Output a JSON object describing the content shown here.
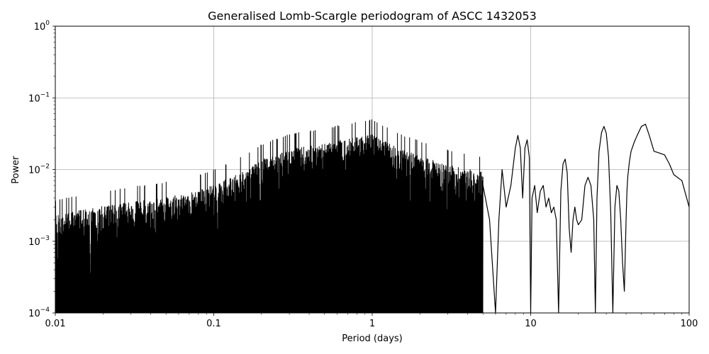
{
  "chart_data": {
    "type": "line",
    "title": "Generalised Lomb-Scargle periodogram of ASCC 1432053",
    "xlabel": "Period (days)",
    "ylabel": "Power",
    "xscale": "log",
    "yscale": "log",
    "xlim": [
      0.01,
      100
    ],
    "ylim": [
      0.0001,
      1
    ],
    "grid": true,
    "line_color": "#000000",
    "grid_color": "#b0b0b0",
    "x_ticks": [
      {
        "value": 0.01,
        "label": "0.01"
      },
      {
        "value": 0.1,
        "label": "0.1"
      },
      {
        "value": 1,
        "label": "1"
      },
      {
        "value": 10,
        "label": "10"
      },
      {
        "value": 100,
        "label": "100"
      }
    ],
    "y_ticks": [
      {
        "value": 0.0001,
        "base": "10",
        "exp": "−4"
      },
      {
        "value": 0.001,
        "base": "10",
        "exp": "−3"
      },
      {
        "value": 0.01,
        "base": "10",
        "exp": "−2"
      },
      {
        "value": 0.1,
        "base": "10",
        "exp": "−1"
      },
      {
        "value": 1,
        "base": "10",
        "exp": "0"
      }
    ],
    "envelope": {
      "x": [
        0.01,
        0.02,
        0.04,
        0.07,
        0.1,
        0.15,
        0.2,
        0.3,
        0.5,
        0.7,
        1.0,
        1.5,
        2.0,
        3.0,
        5.0
      ],
      "peak_power": [
        0.003,
        0.004,
        0.005,
        0.006,
        0.008,
        0.012,
        0.018,
        0.025,
        0.03,
        0.035,
        0.04,
        0.025,
        0.02,
        0.015,
        0.012
      ]
    },
    "series": [
      {
        "x": [
          5.0,
          5.5,
          6.0,
          6.3,
          6.6,
          7.0,
          7.5,
          8.0,
          8.3,
          8.6,
          8.9,
          9.2,
          9.5,
          9.8,
          10.0,
          10.2,
          10.6,
          11.0,
          11.5,
          12.0,
          12.5,
          13.0,
          13.5,
          14.0,
          14.5,
          15.0,
          15.5,
          16.0,
          16.5,
          17.0,
          17.5,
          18.0,
          18.5,
          19.0,
          19.5,
          20.0,
          21.0,
          22.0,
          23.0,
          24.0,
          25.0,
          25.6,
          26.2,
          27.0,
          28.0,
          29.0,
          30.0,
          31.0,
          32.0,
          33.0,
          34.0,
          35.0,
          36.0,
          37.0,
          38.0,
          39.0,
          40.0,
          40.5,
          41.0,
          42.0,
          43.0,
          45.0,
          47.0,
          50.0,
          53.0,
          56.0,
          60.0,
          65.0,
          70.0,
          75.0,
          80.0,
          90.0,
          100.0
        ],
        "y": [
          0.006,
          0.002,
          0.0001,
          0.002,
          0.01,
          0.003,
          0.006,
          0.02,
          0.03,
          0.02,
          0.004,
          0.02,
          0.026,
          0.015,
          0.0001,
          0.004,
          0.006,
          0.0025,
          0.005,
          0.006,
          0.003,
          0.004,
          0.0025,
          0.003,
          0.002,
          0.0001,
          0.005,
          0.012,
          0.014,
          0.009,
          0.0015,
          0.0007,
          0.002,
          0.003,
          0.002,
          0.0017,
          0.002,
          0.006,
          0.0078,
          0.006,
          0.002,
          0.0001,
          0.004,
          0.018,
          0.033,
          0.04,
          0.032,
          0.015,
          0.0025,
          0.0001,
          0.003,
          0.006,
          0.005,
          0.002,
          0.0005,
          0.0002,
          0.002,
          0.005,
          0.008,
          0.013,
          0.018,
          0.024,
          0.03,
          0.04,
          0.043,
          0.03,
          0.018,
          0.017,
          0.016,
          0.012,
          0.0085,
          0.007,
          0.003
        ]
      }
    ]
  }
}
